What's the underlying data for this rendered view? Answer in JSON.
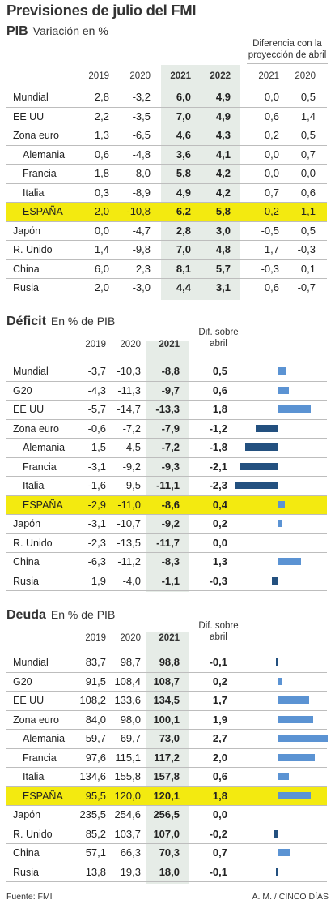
{
  "title": "Previsiones de julio del FMI",
  "pib": {
    "heading": "PIB",
    "subheading": "Variación en %",
    "diff_header": "Diferencia con la proyección de abril",
    "diff_header_line1": "Diferencia con la",
    "diff_header_line2": "proyección de abril",
    "columns": [
      "2019",
      "2020",
      "2021",
      "2022",
      "2021",
      "2020"
    ],
    "rows": [
      {
        "name": "Mundial",
        "indent": false,
        "highlight": false,
        "v": [
          "2,8",
          "-3,2",
          "6,0",
          "4,9",
          "0,0",
          "0,5"
        ]
      },
      {
        "name": "EE UU",
        "indent": false,
        "highlight": false,
        "v": [
          "2,2",
          "-3,5",
          "7,0",
          "4,9",
          "0,6",
          "1,4"
        ]
      },
      {
        "name": "Zona euro",
        "indent": false,
        "highlight": false,
        "v": [
          "1,3",
          "-6,5",
          "4,6",
          "4,3",
          "0,2",
          "0,5"
        ]
      },
      {
        "name": "Alemania",
        "indent": true,
        "highlight": false,
        "v": [
          "0,6",
          "-4,8",
          "3,6",
          "4,1",
          "0,0",
          "0,7"
        ]
      },
      {
        "name": "Francia",
        "indent": true,
        "highlight": false,
        "v": [
          "1,8",
          "-8,0",
          "5,8",
          "4,2",
          "0,0",
          "0,0"
        ]
      },
      {
        "name": "Italia",
        "indent": true,
        "highlight": false,
        "v": [
          "0,3",
          "-8,9",
          "4,9",
          "4,2",
          "0,7",
          "0,6"
        ]
      },
      {
        "name": "ESPAÑA",
        "indent": true,
        "highlight": true,
        "v": [
          "2,0",
          "-10,8",
          "6,2",
          "5,8",
          "-0,2",
          "1,1"
        ]
      },
      {
        "name": "Japón",
        "indent": false,
        "highlight": false,
        "v": [
          "0,0",
          "-4,7",
          "2,8",
          "3,0",
          "-0,5",
          "0,5"
        ]
      },
      {
        "name": "R. Unido",
        "indent": false,
        "highlight": false,
        "v": [
          "1,4",
          "-9,8",
          "7,0",
          "4,8",
          "1,7",
          "-0,3"
        ]
      },
      {
        "name": "China",
        "indent": false,
        "highlight": false,
        "v": [
          "6,0",
          "2,3",
          "8,1",
          "5,7",
          "-0,3",
          "0,1"
        ]
      },
      {
        "name": "Rusia",
        "indent": false,
        "highlight": false,
        "v": [
          "2,0",
          "-3,0",
          "4,4",
          "3,1",
          "0,6",
          "-0,7"
        ]
      }
    ]
  },
  "deficit": {
    "heading": "Déficit",
    "subheading": "En % de PIB",
    "columns": [
      "2019",
      "2020",
      "2021"
    ],
    "diff_header_line1": "Dif. sobre",
    "diff_header_line2": "abril",
    "rows": [
      {
        "name": "Mundial",
        "indent": false,
        "highlight": false,
        "v": [
          "-3,7",
          "-10,3",
          "-8,8",
          "0,5"
        ]
      },
      {
        "name": "G20",
        "indent": false,
        "highlight": false,
        "v": [
          "-4,3",
          "-11,3",
          "-9,7",
          "0,6"
        ]
      },
      {
        "name": "EE UU",
        "indent": false,
        "highlight": false,
        "v": [
          "-5,7",
          "-14,7",
          "-13,3",
          "1,8"
        ]
      },
      {
        "name": "Zona euro",
        "indent": false,
        "highlight": false,
        "v": [
          "-0,6",
          "-7,2",
          "-7,9",
          "-1,2"
        ]
      },
      {
        "name": "Alemania",
        "indent": true,
        "highlight": false,
        "v": [
          "1,5",
          "-4,5",
          "-7,2",
          "-1,8"
        ]
      },
      {
        "name": "Francia",
        "indent": true,
        "highlight": false,
        "v": [
          "-3,1",
          "-9,2",
          "-9,3",
          "-2,1"
        ]
      },
      {
        "name": "Italia",
        "indent": true,
        "highlight": false,
        "v": [
          "-1,6",
          "-9,5",
          "-11,1",
          "-2,3"
        ]
      },
      {
        "name": "ESPAÑA",
        "indent": true,
        "highlight": true,
        "v": [
          "-2,9",
          "-11,0",
          "-8,6",
          "0,4"
        ]
      },
      {
        "name": "Japón",
        "indent": false,
        "highlight": false,
        "v": [
          "-3,1",
          "-10,7",
          "-9,2",
          "0,2"
        ]
      },
      {
        "name": "R. Unido",
        "indent": false,
        "highlight": false,
        "v": [
          "-2,3",
          "-13,5",
          "-11,7",
          "0,0"
        ]
      },
      {
        "name": "China",
        "indent": false,
        "highlight": false,
        "v": [
          "-6,3",
          "-11,2",
          "-8,3",
          "1,3"
        ]
      },
      {
        "name": "Rusia",
        "indent": false,
        "highlight": false,
        "v": [
          "1,9",
          "-4,0",
          "-1,1",
          "-0,3"
        ]
      }
    ]
  },
  "deuda": {
    "heading": "Deuda",
    "subheading": "En % de PIB",
    "columns": [
      "2019",
      "2020",
      "2021"
    ],
    "diff_header_line1": "Dif. sobre",
    "diff_header_line2": "abril",
    "rows": [
      {
        "name": "Mundial",
        "indent": false,
        "highlight": false,
        "v": [
          "83,7",
          "98,7",
          "98,8",
          "-0,1"
        ]
      },
      {
        "name": "G20",
        "indent": false,
        "highlight": false,
        "v": [
          "91,5",
          "108,4",
          "108,7",
          "0,2"
        ]
      },
      {
        "name": "EE UU",
        "indent": false,
        "highlight": false,
        "v": [
          "108,2",
          "133,6",
          "134,5",
          "1,7"
        ]
      },
      {
        "name": "Zona euro",
        "indent": false,
        "highlight": false,
        "v": [
          "84,0",
          "98,0",
          "100,1",
          "1,9"
        ]
      },
      {
        "name": "Alemania",
        "indent": true,
        "highlight": false,
        "v": [
          "59,7",
          "69,7",
          "73,0",
          "2,7"
        ]
      },
      {
        "name": "Francia",
        "indent": true,
        "highlight": false,
        "v": [
          "97,6",
          "115,1",
          "117,2",
          "2,0"
        ]
      },
      {
        "name": "Italia",
        "indent": true,
        "highlight": false,
        "v": [
          "134,6",
          "155,8",
          "157,8",
          "0,6"
        ]
      },
      {
        "name": "ESPAÑA",
        "indent": true,
        "highlight": true,
        "v": [
          "95,5",
          "120,0",
          "120,1",
          "1,8"
        ]
      },
      {
        "name": "Japón",
        "indent": false,
        "highlight": false,
        "v": [
          "235,5",
          "254,6",
          "256,5",
          "0,0"
        ]
      },
      {
        "name": "R. Unido",
        "indent": false,
        "highlight": false,
        "v": [
          "85,2",
          "103,7",
          "107,0",
          "-0,2"
        ]
      },
      {
        "name": "China",
        "indent": false,
        "highlight": false,
        "v": [
          "57,1",
          "66,3",
          "70,3",
          "0,7"
        ]
      },
      {
        "name": "Rusia",
        "indent": false,
        "highlight": false,
        "v": [
          "13,8",
          "19,3",
          "18,0",
          "-0,1"
        ]
      }
    ]
  },
  "colors": {
    "bar_positive": "#5b93d3",
    "bar_negative": "#23507f",
    "highlight": "#f3ea10",
    "column_shade": "#e6ece7"
  },
  "footer": {
    "source": "Fuente: FMI",
    "credit": "A. M. / CINCO DÍAS"
  },
  "chart_data": [
    {
      "type": "table",
      "title": "PIB",
      "subtitle": "Variación en %",
      "columns": [
        "2019",
        "2020",
        "2021",
        "2022",
        "Dif. 2021",
        "Dif. 2020"
      ],
      "categories": [
        "Mundial",
        "EE UU",
        "Zona euro",
        "Alemania",
        "Francia",
        "Italia",
        "ESPAÑA",
        "Japón",
        "R. Unido",
        "China",
        "Rusia"
      ]
    },
    {
      "type": "bar",
      "title": "Déficit",
      "subtitle": "En % de PIB",
      "categories": [
        "Mundial",
        "G20",
        "EE UU",
        "Zona euro",
        "Alemania",
        "Francia",
        "Italia",
        "ESPAÑA",
        "Japón",
        "R. Unido",
        "China",
        "Rusia"
      ],
      "values": [
        0.5,
        0.6,
        1.8,
        -1.2,
        -1.8,
        -2.1,
        -2.3,
        0.4,
        0.2,
        0.0,
        1.3,
        -0.3
      ],
      "xlim": [
        -2.3,
        2.7
      ]
    },
    {
      "type": "bar",
      "title": "Deuda",
      "subtitle": "En % de PIB",
      "categories": [
        "Mundial",
        "G20",
        "EE UU",
        "Zona euro",
        "Alemania",
        "Francia",
        "Italia",
        "ESPAÑA",
        "Japón",
        "R. Unido",
        "China",
        "Rusia"
      ],
      "values": [
        -0.1,
        0.2,
        1.7,
        1.9,
        2.7,
        2.0,
        0.6,
        1.8,
        0.0,
        -0.2,
        0.7,
        -0.1
      ],
      "xlim": [
        -0.3,
        2.7
      ]
    }
  ]
}
